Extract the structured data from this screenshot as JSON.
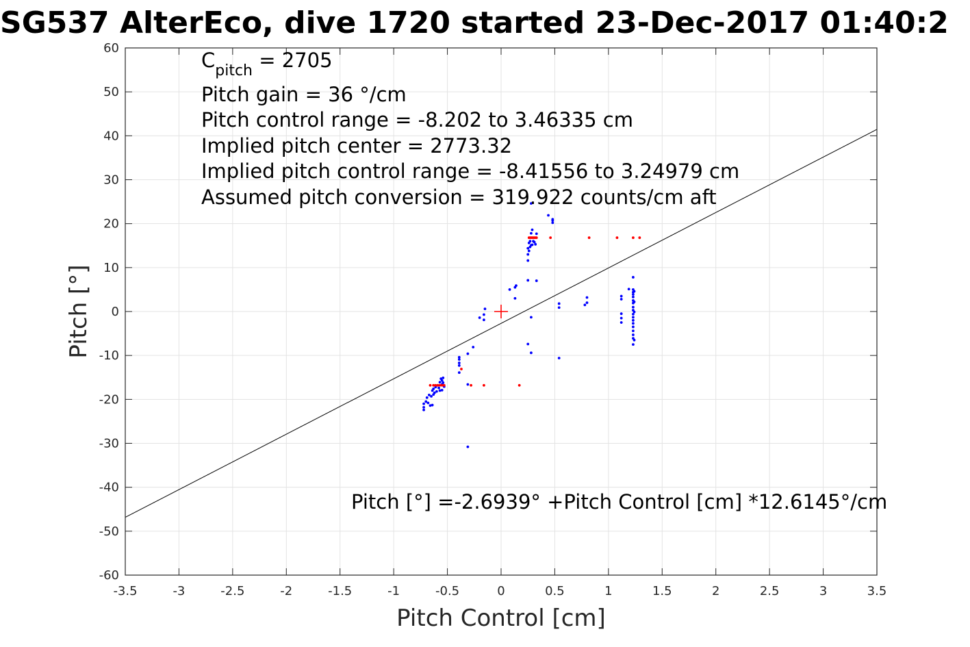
{
  "figure": {
    "title": "SG537 AlterEco, dive 1720 started 23-Dec-2017 01:40:2",
    "annotations": {
      "c_pitch_prefix": "C",
      "c_pitch_sub": "pitch",
      "c_pitch_value": " = 2705",
      "pitch_gain": "Pitch gain = 36 °/cm",
      "control_range": "Pitch control range = -8.202 to 3.46335 cm",
      "implied_center": "Implied pitch center = 2773.32",
      "implied_range": "Implied pitch control range = -8.41556 to 3.24979 cm",
      "conversion": "Assumed pitch conversion = 319.922 counts/cm aft"
    },
    "equation": "Pitch [°] =-2.6939° +Pitch Control [cm] *12.6145°/cm"
  },
  "chart_data": {
    "type": "scatter",
    "title": "SG537 AlterEco, dive 1720 started 23-Dec-2017 01:40:2",
    "xlabel": "Pitch Control [cm]",
    "ylabel": "Pitch [°]",
    "xlim": [
      -3.5,
      3.5
    ],
    "ylim": [
      -60,
      60
    ],
    "xticks": [
      "-3.5",
      "-3",
      "-2.5",
      "-2",
      "-1.5",
      "-1",
      "-0.5",
      "0",
      "0.5",
      "1",
      "1.5",
      "2",
      "2.5",
      "3",
      "3.5"
    ],
    "yticks": [
      "60",
      "50",
      "40",
      "30",
      "20",
      "10",
      "0",
      "-10",
      "-20",
      "-30",
      "-40",
      "-50",
      "-60"
    ],
    "grid": true,
    "colors": {
      "observed": "#0000ff",
      "flagged": "#ff0000",
      "fit": "#000000",
      "center": "#ff0000"
    },
    "fit_line": {
      "intercept": -2.6939,
      "slope": 12.6145
    },
    "center_marker": {
      "x": 0,
      "y": 0
    },
    "series": [
      {
        "role": "observed",
        "points": [
          [
            -0.72,
            -21.0
          ],
          [
            -0.72,
            -22.4
          ],
          [
            -0.72,
            -21.8
          ],
          [
            -0.7,
            -20.5
          ],
          [
            -0.69,
            -19.6
          ],
          [
            -0.68,
            -20.8
          ],
          [
            -0.67,
            -19.0
          ],
          [
            -0.66,
            -21.4
          ],
          [
            -0.65,
            -19.3
          ],
          [
            -0.64,
            -18.0
          ],
          [
            -0.64,
            -21.3
          ],
          [
            -0.63,
            -18.9
          ],
          [
            -0.63,
            -17.6
          ],
          [
            -0.62,
            -18.5
          ],
          [
            -0.61,
            -17.2
          ],
          [
            -0.6,
            -18.2
          ],
          [
            -0.59,
            -16.8
          ],
          [
            -0.58,
            -17.4
          ],
          [
            -0.57,
            -16.1
          ],
          [
            -0.57,
            -18.0
          ],
          [
            -0.56,
            -15.3
          ],
          [
            -0.55,
            -17.9
          ],
          [
            -0.55,
            -16.6
          ],
          [
            -0.55,
            -15.7
          ],
          [
            -0.54,
            -15.1
          ],
          [
            -0.54,
            -16.2
          ],
          [
            -0.53,
            -17.1
          ],
          [
            -0.39,
            -10.4
          ],
          [
            -0.39,
            -10.9
          ],
          [
            -0.39,
            -11.7
          ],
          [
            -0.39,
            -12.3
          ],
          [
            -0.39,
            -13.9
          ],
          [
            -0.31,
            -9.6
          ],
          [
            -0.31,
            -16.6
          ],
          [
            -0.31,
            -30.8
          ],
          [
            -0.26,
            -8.1
          ],
          [
            -0.2,
            -1.4
          ],
          [
            -0.16,
            -0.7
          ],
          [
            -0.16,
            -1.9
          ],
          [
            -0.15,
            0.6
          ],
          [
            0.08,
            5.0
          ],
          [
            0.13,
            5.5
          ],
          [
            0.13,
            3.0
          ],
          [
            0.14,
            5.9
          ],
          [
            0.25,
            7.1
          ],
          [
            0.25,
            -7.4
          ],
          [
            0.25,
            11.6
          ],
          [
            0.25,
            13.0
          ],
          [
            0.25,
            14.4
          ],
          [
            0.26,
            15.6
          ],
          [
            0.26,
            13.8
          ],
          [
            0.27,
            16.0
          ],
          [
            0.27,
            14.7
          ],
          [
            0.28,
            -1.3
          ],
          [
            0.28,
            -9.4
          ],
          [
            0.28,
            15.1
          ],
          [
            0.28,
            17.8
          ],
          [
            0.28,
            24.6
          ],
          [
            0.29,
            18.6
          ],
          [
            0.29,
            15.2
          ],
          [
            0.3,
            16.0
          ],
          [
            0.31,
            15.8
          ],
          [
            0.32,
            15.3
          ],
          [
            0.33,
            17.7
          ],
          [
            0.33,
            7.0
          ],
          [
            0.44,
            21.9
          ],
          [
            0.48,
            21.0
          ],
          [
            0.48,
            20.2
          ],
          [
            0.48,
            20.7
          ],
          [
            0.54,
            -10.6
          ],
          [
            0.54,
            1.8
          ],
          [
            0.54,
            0.9
          ],
          [
            0.78,
            1.5
          ],
          [
            0.8,
            3.2
          ],
          [
            0.8,
            2.0
          ],
          [
            1.12,
            3.5
          ],
          [
            1.12,
            2.8
          ],
          [
            1.12,
            -0.5
          ],
          [
            1.12,
            -1.5
          ],
          [
            1.12,
            -2.5
          ],
          [
            1.19,
            5.1
          ],
          [
            1.23,
            7.8
          ],
          [
            1.23,
            5.0
          ],
          [
            1.23,
            4.4
          ],
          [
            1.23,
            3.9
          ],
          [
            1.23,
            3.3
          ],
          [
            1.23,
            2.5
          ],
          [
            1.23,
            1.9
          ],
          [
            1.23,
            1.0
          ],
          [
            1.23,
            0.3
          ],
          [
            1.23,
            -0.6
          ],
          [
            1.23,
            -1.3
          ],
          [
            1.23,
            -2.0
          ],
          [
            1.23,
            -2.7
          ],
          [
            1.23,
            -3.5
          ],
          [
            1.23,
            -4.4
          ],
          [
            1.23,
            -5.3
          ],
          [
            1.23,
            -6.1
          ],
          [
            1.23,
            -7.5
          ],
          [
            1.24,
            -6.5
          ],
          [
            1.24,
            -0.1
          ],
          [
            1.24,
            4.6
          ],
          [
            1.24,
            2.2
          ]
        ]
      },
      {
        "role": "flagged",
        "points": [
          [
            -0.66,
            -16.8
          ],
          [
            -0.63,
            -16.8
          ],
          [
            -0.61,
            -16.8
          ],
          [
            -0.59,
            -16.8
          ],
          [
            -0.57,
            -16.8
          ],
          [
            -0.55,
            -16.8
          ],
          [
            -0.53,
            -16.8
          ],
          [
            -0.37,
            -13.1
          ],
          [
            -0.28,
            -16.8
          ],
          [
            -0.16,
            -16.8
          ],
          [
            0.17,
            -16.8
          ],
          [
            0.26,
            16.8
          ],
          [
            0.27,
            16.8
          ],
          [
            0.28,
            16.8
          ],
          [
            0.29,
            16.8
          ],
          [
            0.3,
            16.8
          ],
          [
            0.31,
            16.8
          ],
          [
            0.32,
            16.8
          ],
          [
            0.33,
            16.8
          ],
          [
            0.46,
            16.8
          ],
          [
            0.82,
            16.8
          ],
          [
            1.08,
            16.8
          ],
          [
            1.23,
            16.8
          ],
          [
            1.29,
            16.8
          ]
        ]
      }
    ]
  }
}
